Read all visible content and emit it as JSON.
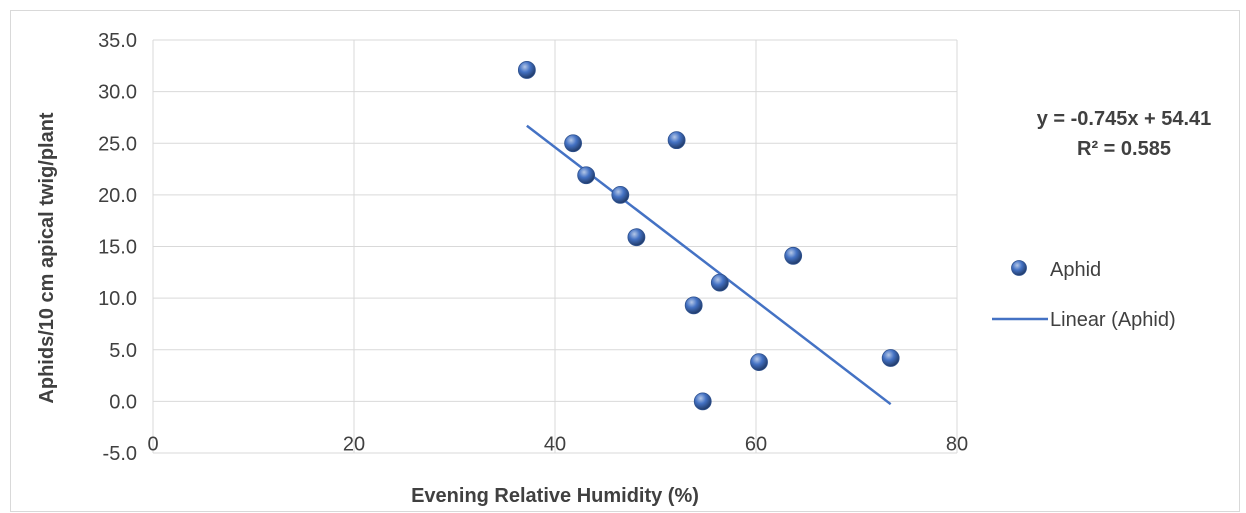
{
  "chart_data": {
    "type": "scatter",
    "title": "",
    "xlabel": "Evening Relative Humidity (%)",
    "ylabel": "Aphids/10 cm apical twig/plant",
    "xlim": [
      0,
      80
    ],
    "ylim": [
      -5.0,
      35.0
    ],
    "x_ticks": [
      "0",
      "20",
      "40",
      "60",
      "80"
    ],
    "y_ticks": [
      "-5.0",
      "0.0",
      "5.0",
      "10.0",
      "15.0",
      "20.0",
      "25.0",
      "30.0",
      "35.0"
    ],
    "grid": true,
    "legend_position": "right",
    "series": [
      {
        "name": "Aphid",
        "color": "#4472c4",
        "points": [
          {
            "x": 37.2,
            "y": 32.1
          },
          {
            "x": 41.8,
            "y": 25.0
          },
          {
            "x": 43.1,
            "y": 21.9
          },
          {
            "x": 46.5,
            "y": 20.0
          },
          {
            "x": 48.1,
            "y": 15.9
          },
          {
            "x": 52.1,
            "y": 25.3
          },
          {
            "x": 53.8,
            "y": 9.3
          },
          {
            "x": 54.7,
            "y": 0.0
          },
          {
            "x": 56.4,
            "y": 11.5
          },
          {
            "x": 60.3,
            "y": 3.8
          },
          {
            "x": 63.7,
            "y": 14.1
          },
          {
            "x": 73.4,
            "y": 4.2
          }
        ]
      }
    ],
    "trendline": {
      "name": "Linear (Aphid)",
      "color": "#4472c4",
      "slope": -0.745,
      "intercept": 54.41,
      "x_start": 37.2,
      "x_end": 73.4
    },
    "equation": "y = -0.745x + 54.41",
    "r_squared": "R² = 0.585",
    "legend": [
      "Aphid",
      "Linear (Aphid)"
    ]
  }
}
